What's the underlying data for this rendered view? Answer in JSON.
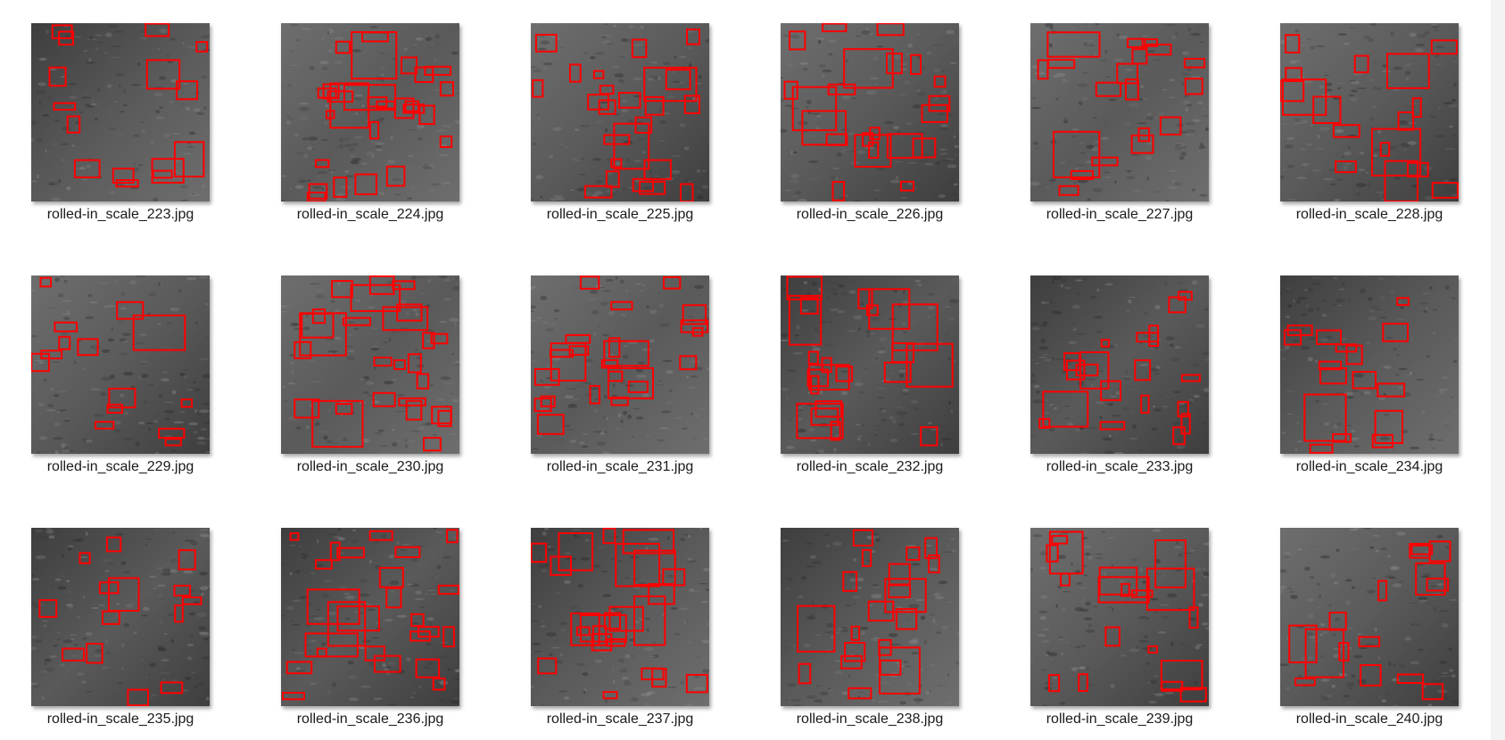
{
  "colors": {
    "box": "#ff0000",
    "steel_dark": "#3e3e3e",
    "steel_light": "#6e6e6e"
  },
  "files": [
    {
      "name": "rolled-in_scale_223.jpg",
      "icon": "image-thumbnail-icon"
    },
    {
      "name": "rolled-in_scale_224.jpg",
      "icon": "image-thumbnail-icon"
    },
    {
      "name": "rolled-in_scale_225.jpg",
      "icon": "image-thumbnail-icon"
    },
    {
      "name": "rolled-in_scale_226.jpg",
      "icon": "image-thumbnail-icon"
    },
    {
      "name": "rolled-in_scale_227.jpg",
      "icon": "image-thumbnail-icon"
    },
    {
      "name": "rolled-in_scale_228.jpg",
      "icon": "image-thumbnail-icon"
    },
    {
      "name": "rolled-in_scale_229.jpg",
      "icon": "image-thumbnail-icon"
    },
    {
      "name": "rolled-in_scale_230.jpg",
      "icon": "image-thumbnail-icon"
    },
    {
      "name": "rolled-in_scale_231.jpg",
      "icon": "image-thumbnail-icon"
    },
    {
      "name": "rolled-in_scale_232.jpg",
      "icon": "image-thumbnail-icon"
    },
    {
      "name": "rolled-in_scale_233.jpg",
      "icon": "image-thumbnail-icon"
    },
    {
      "name": "rolled-in_scale_234.jpg",
      "icon": "image-thumbnail-icon"
    },
    {
      "name": "rolled-in_scale_235.jpg",
      "icon": "image-thumbnail-icon"
    },
    {
      "name": "rolled-in_scale_236.jpg",
      "icon": "image-thumbnail-icon"
    },
    {
      "name": "rolled-in_scale_237.jpg",
      "icon": "image-thumbnail-icon"
    },
    {
      "name": "rolled-in_scale_238.jpg",
      "icon": "image-thumbnail-icon"
    },
    {
      "name": "rolled-in_scale_239.jpg",
      "icon": "image-thumbnail-icon"
    },
    {
      "name": "rolled-in_scale_240.jpg",
      "icon": "image-thumbnail-icon"
    }
  ]
}
